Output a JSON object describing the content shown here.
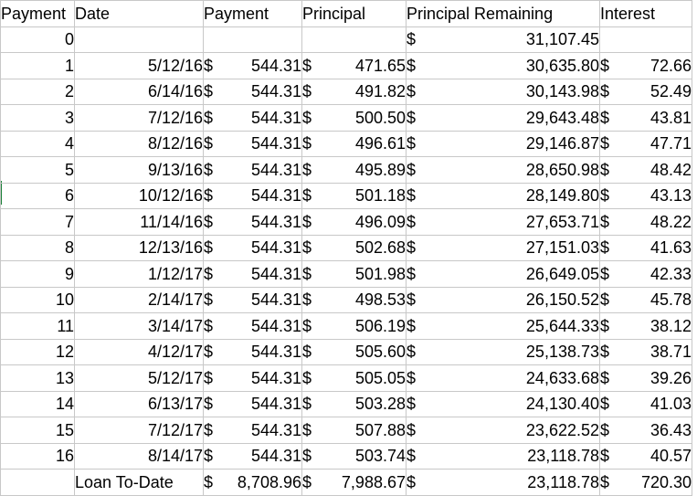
{
  "headers": [
    "Payment",
    "Date",
    "Payment",
    "Principal",
    "Principal Remaining",
    "Interest"
  ],
  "currency": "$",
  "initial_row": {
    "n": "0",
    "remaining": "31,107.45"
  },
  "rows": [
    {
      "n": "1",
      "date": "5/12/16",
      "payment": "544.31",
      "principal": "471.65",
      "remaining": "30,635.80",
      "interest": "72.66"
    },
    {
      "n": "2",
      "date": "6/14/16",
      "payment": "544.31",
      "principal": "491.82",
      "remaining": "30,143.98",
      "interest": "52.49"
    },
    {
      "n": "3",
      "date": "7/12/16",
      "payment": "544.31",
      "principal": "500.50",
      "remaining": "29,643.48",
      "interest": "43.81"
    },
    {
      "n": "4",
      "date": "8/12/16",
      "payment": "544.31",
      "principal": "496.61",
      "remaining": "29,146.87",
      "interest": "47.71"
    },
    {
      "n": "5",
      "date": "9/13/16",
      "payment": "544.31",
      "principal": "495.89",
      "remaining": "28,650.98",
      "interest": "48.42"
    },
    {
      "n": "6",
      "date": "10/12/16",
      "payment": "544.31",
      "principal": "501.18",
      "remaining": "28,149.80",
      "interest": "43.13"
    },
    {
      "n": "7",
      "date": "11/14/16",
      "payment": "544.31",
      "principal": "496.09",
      "remaining": "27,653.71",
      "interest": "48.22"
    },
    {
      "n": "8",
      "date": "12/13/16",
      "payment": "544.31",
      "principal": "502.68",
      "remaining": "27,151.03",
      "interest": "41.63"
    },
    {
      "n": "9",
      "date": "1/12/17",
      "payment": "544.31",
      "principal": "501.98",
      "remaining": "26,649.05",
      "interest": "42.33"
    },
    {
      "n": "10",
      "date": "2/14/17",
      "payment": "544.31",
      "principal": "498.53",
      "remaining": "26,150.52",
      "interest": "45.78"
    },
    {
      "n": "11",
      "date": "3/14/17",
      "payment": "544.31",
      "principal": "506.19",
      "remaining": "25,644.33",
      "interest": "38.12"
    },
    {
      "n": "12",
      "date": "4/12/17",
      "payment": "544.31",
      "principal": "505.60",
      "remaining": "25,138.73",
      "interest": "38.71"
    },
    {
      "n": "13",
      "date": "5/12/17",
      "payment": "544.31",
      "principal": "505.05",
      "remaining": "24,633.68",
      "interest": "39.26"
    },
    {
      "n": "14",
      "date": "6/13/17",
      "payment": "544.31",
      "principal": "503.28",
      "remaining": "24,130.40",
      "interest": "41.03"
    },
    {
      "n": "15",
      "date": "7/12/17",
      "payment": "544.31",
      "principal": "507.88",
      "remaining": "23,622.52",
      "interest": "36.43"
    },
    {
      "n": "16",
      "date": "8/14/17",
      "payment": "544.31",
      "principal": "503.74",
      "remaining": "23,118.78",
      "interest": "40.57"
    }
  ],
  "totals": {
    "label": "Loan To-Date",
    "payment": "8,708.96",
    "principal": "7,988.67",
    "remaining": "23,118.78",
    "interest": "720.30"
  },
  "colors": {
    "grid": "#c8c8c8",
    "selection": "#1a7f37"
  }
}
